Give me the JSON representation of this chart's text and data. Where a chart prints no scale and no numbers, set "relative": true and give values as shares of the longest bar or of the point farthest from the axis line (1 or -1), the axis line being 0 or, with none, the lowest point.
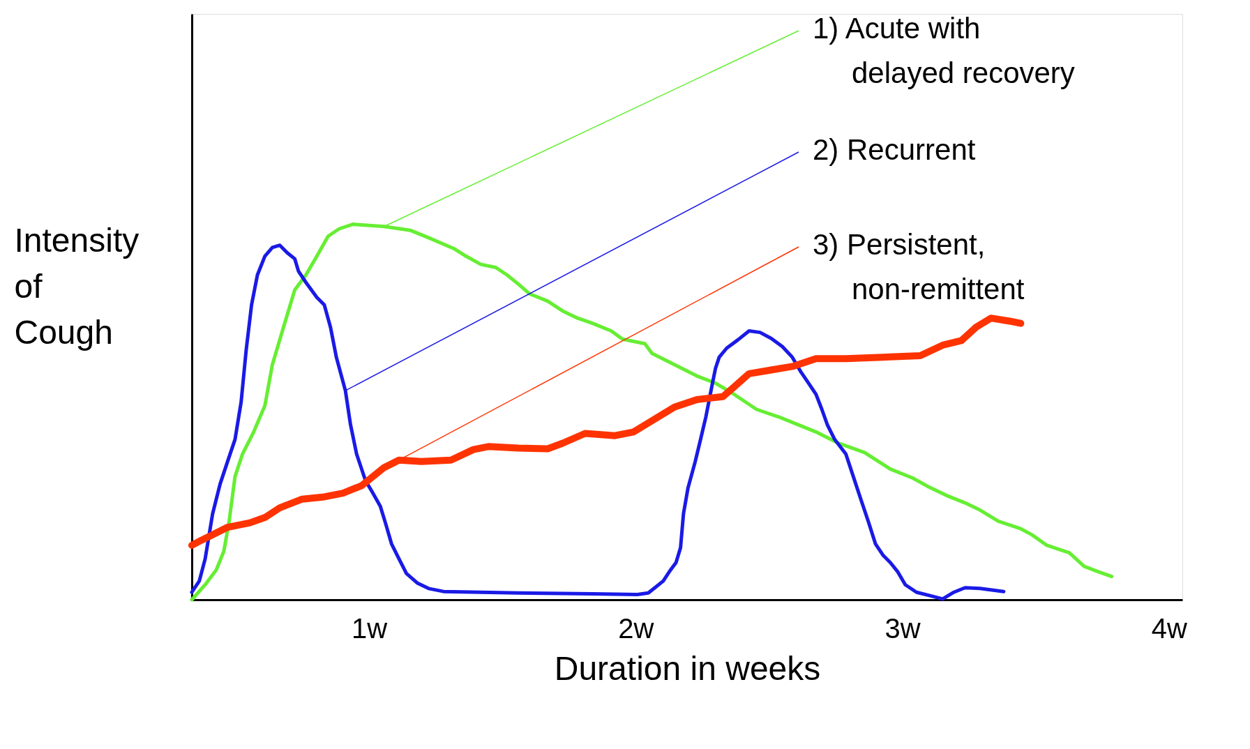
{
  "chart_data": {
    "type": "line",
    "relative": true,
    "xlabel": "Duration in weeks",
    "ylabel": "Intensity of Cough",
    "xlim": [
      0.335,
      4.05
    ],
    "xticks": [
      {
        "value": 1,
        "label": "1w"
      },
      {
        "value": 2,
        "label": "2w"
      },
      {
        "value": 3,
        "label": "3w"
      },
      {
        "value": 4,
        "label": "4w"
      }
    ],
    "line_style": "solid",
    "grid": false,
    "series": [
      {
        "name": "1) Acute with\ndelayed recovery",
        "color": "#66ee33",
        "x": [
          0.335,
          0.385,
          0.427,
          0.455,
          0.475,
          0.497,
          0.525,
          0.567,
          0.609,
          0.637,
          0.679,
          0.721,
          0.763,
          0.804,
          0.846,
          0.888,
          0.939,
          1.056,
          1.154,
          1.223,
          1.321,
          1.363,
          1.419,
          1.475,
          1.517,
          1.559,
          1.601,
          1.67,
          1.726,
          1.782,
          1.838,
          1.908,
          1.95,
          2.034,
          2.061,
          2.117,
          2.173,
          2.229,
          2.299,
          2.369,
          2.453,
          2.536,
          2.592,
          2.676,
          2.76,
          2.858,
          2.955,
          3.039,
          3.095,
          3.165,
          3.235,
          3.291,
          3.36,
          3.444,
          3.486,
          3.542,
          3.626,
          3.682,
          3.737,
          3.785
        ],
        "values": [
          0,
          0.04,
          0.08,
          0.129,
          0.209,
          0.328,
          0.388,
          0.447,
          0.517,
          0.626,
          0.726,
          0.825,
          0.865,
          0.915,
          0.968,
          0.988,
          1.0,
          0.994,
          0.984,
          0.964,
          0.934,
          0.915,
          0.893,
          0.885,
          0.865,
          0.841,
          0.815,
          0.795,
          0.769,
          0.75,
          0.736,
          0.716,
          0.694,
          0.682,
          0.656,
          0.636,
          0.616,
          0.596,
          0.577,
          0.547,
          0.507,
          0.487,
          0.471,
          0.447,
          0.417,
          0.392,
          0.348,
          0.324,
          0.302,
          0.278,
          0.258,
          0.239,
          0.209,
          0.189,
          0.173,
          0.145,
          0.125,
          0.089,
          0.074,
          0.062
        ]
      },
      {
        "name": "2) Recurrent",
        "color": "#1a1ae6",
        "x": [
          0.335,
          0.363,
          0.385,
          0.413,
          0.441,
          0.469,
          0.497,
          0.52,
          0.539,
          0.559,
          0.581,
          0.609,
          0.637,
          0.665,
          0.693,
          0.721,
          0.735,
          0.763,
          0.804,
          0.832,
          0.855,
          0.877,
          0.911,
          0.93,
          0.953,
          0.986,
          1.014,
          1.042,
          1.061,
          1.084,
          1.112,
          1.14,
          1.182,
          1.223,
          1.279,
          1.559,
          1.838,
          2.006,
          2.047,
          2.075,
          2.103,
          2.131,
          2.151,
          2.168,
          2.179,
          2.196,
          2.223,
          2.243,
          2.263,
          2.285,
          2.299,
          2.313,
          2.341,
          2.383,
          2.425,
          2.466,
          2.508,
          2.55,
          2.587,
          2.62,
          2.648,
          2.676,
          2.698,
          2.718,
          2.746,
          2.788,
          2.816,
          2.844,
          2.872,
          2.899,
          2.927,
          2.955,
          2.983,
          3.011,
          3.053,
          3.109,
          3.151,
          3.193,
          3.235,
          3.291,
          3.38
        ],
        "values": [
          0.02,
          0.05,
          0.109,
          0.229,
          0.308,
          0.368,
          0.427,
          0.527,
          0.666,
          0.785,
          0.865,
          0.915,
          0.938,
          0.944,
          0.924,
          0.908,
          0.875,
          0.845,
          0.805,
          0.785,
          0.726,
          0.646,
          0.557,
          0.467,
          0.388,
          0.318,
          0.284,
          0.249,
          0.205,
          0.149,
          0.109,
          0.07,
          0.044,
          0.03,
          0.022,
          0.018,
          0.016,
          0.014,
          0.018,
          0.034,
          0.05,
          0.08,
          0.099,
          0.139,
          0.229,
          0.298,
          0.368,
          0.427,
          0.487,
          0.567,
          0.616,
          0.646,
          0.67,
          0.692,
          0.716,
          0.712,
          0.696,
          0.674,
          0.646,
          0.606,
          0.577,
          0.547,
          0.507,
          0.467,
          0.427,
          0.388,
          0.328,
          0.268,
          0.209,
          0.149,
          0.119,
          0.099,
          0.074,
          0.04,
          0.02,
          0.01,
          0.002,
          0.02,
          0.032,
          0.03,
          0.022
        ]
      },
      {
        "name": "3) Persistent,\nnon-remittent",
        "color": "#ff3300",
        "x": [
          0.335,
          0.372,
          0.413,
          0.469,
          0.553,
          0.609,
          0.665,
          0.749,
          0.832,
          0.902,
          0.972,
          1.014,
          1.056,
          1.112,
          1.196,
          1.307,
          1.391,
          1.447,
          1.559,
          1.67,
          1.726,
          1.81,
          1.922,
          1.992,
          2.061,
          2.145,
          2.229,
          2.327,
          2.369,
          2.425,
          2.508,
          2.592,
          2.676,
          2.788,
          2.927,
          3.067,
          3.151,
          3.221,
          3.277,
          3.332,
          3.402,
          3.444
        ],
        "values": [
          0.145,
          0.159,
          0.173,
          0.193,
          0.205,
          0.219,
          0.245,
          0.268,
          0.274,
          0.284,
          0.304,
          0.328,
          0.352,
          0.372,
          0.368,
          0.372,
          0.4,
          0.408,
          0.404,
          0.402,
          0.417,
          0.443,
          0.437,
          0.447,
          0.477,
          0.513,
          0.533,
          0.541,
          0.567,
          0.602,
          0.612,
          0.622,
          0.642,
          0.642,
          0.646,
          0.65,
          0.678,
          0.69,
          0.726,
          0.75,
          0.742,
          0.736
        ]
      }
    ]
  }
}
